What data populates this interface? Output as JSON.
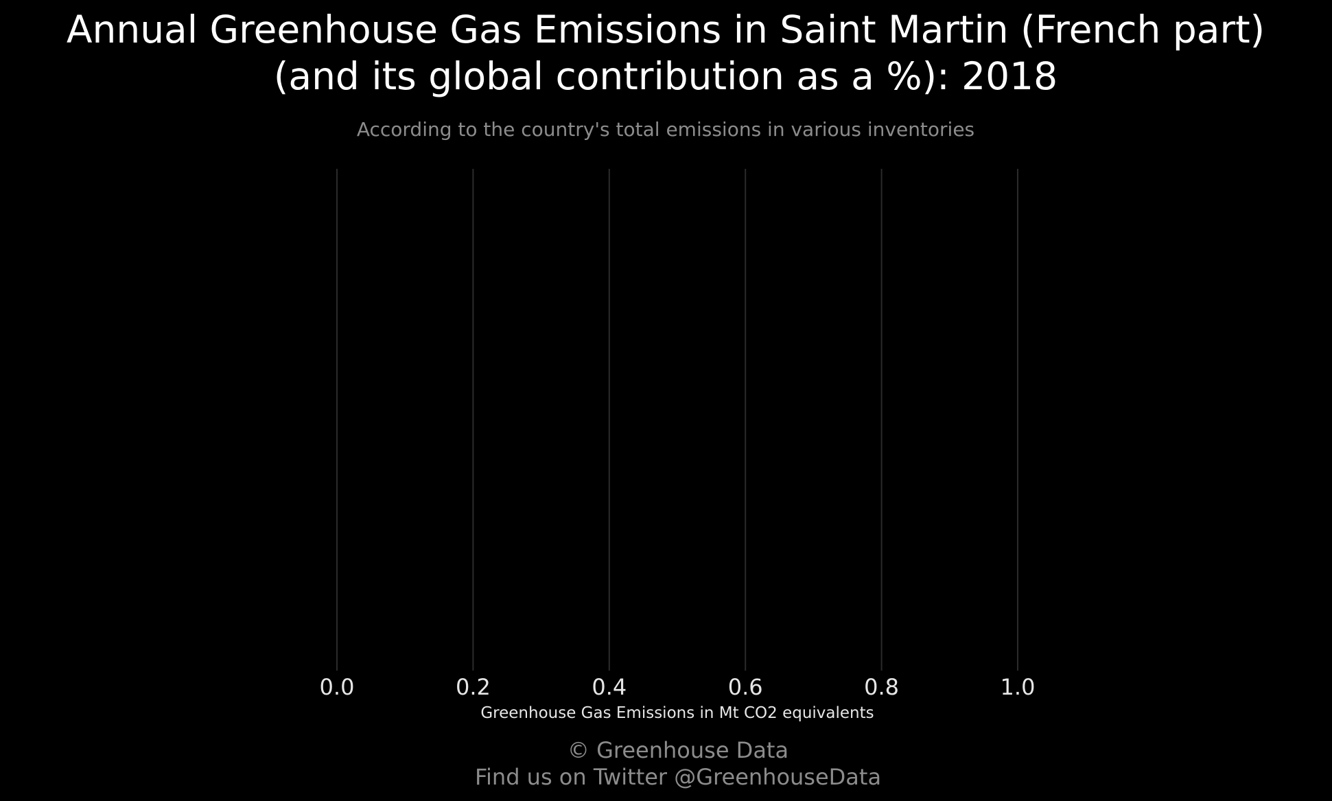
{
  "chart_data": {
    "type": "bar",
    "title_lines": [
      "Annual Greenhouse Gas Emissions in Saint Martin (French part)",
      "(and its global contribution as a %): 2018"
    ],
    "subtitle": "According to the country's total emissions in various inventories",
    "xlabel": "Greenhouse Gas Emissions in Mt CO2 equivalents",
    "ylabel": "",
    "x_ticks": [
      "0.0",
      "0.2",
      "0.4",
      "0.6",
      "0.8",
      "1.0"
    ],
    "xlim": [
      0,
      1.0
    ],
    "categories": [],
    "values": [],
    "grid": true,
    "legend": "none"
  },
  "footer": {
    "copyright": "© Greenhouse Data",
    "twitter": "Find us on Twitter @GreenhouseData"
  },
  "colors": {
    "background": "#000000",
    "title": "#ffffff",
    "subtitle": "#8c8c8c",
    "gridline": "#2b2b2b",
    "tick_label": "#e6e6e6",
    "footer": "#8c8c8c"
  }
}
